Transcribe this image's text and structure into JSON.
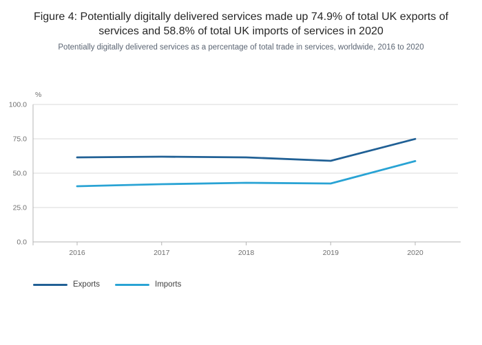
{
  "chart_data": {
    "type": "line",
    "title": "Figure 4: Potentially digitally delivered services made up 74.9% of total UK exports of services and 58.8% of total UK imports of services in 2020",
    "subtitle": "Potentially digitally delivered services as a percentage of total trade in services, worldwide, 2016 to 2020",
    "ylabel": "%",
    "ylim": [
      0,
      100
    ],
    "yticks": [
      0,
      25,
      50,
      75,
      100
    ],
    "ytick_labels": [
      "0.0",
      "25.0",
      "50.0",
      "75.0",
      "100.0"
    ],
    "x": [
      "2016",
      "2017",
      "2018",
      "2019",
      "2020"
    ],
    "grid": true,
    "legend_position": "bottom-left",
    "series": [
      {
        "name": "Exports",
        "color": "#206095",
        "values": [
          61.5,
          62.0,
          61.5,
          59.0,
          74.9
        ]
      },
      {
        "name": "Imports",
        "color": "#29a3d4",
        "values": [
          40.5,
          42.0,
          43.0,
          42.5,
          58.8
        ]
      }
    ],
    "axis_color": "#b4b4b4",
    "grid_color": "#d9d9d9",
    "tick_label_color": "#6f6f6f"
  }
}
